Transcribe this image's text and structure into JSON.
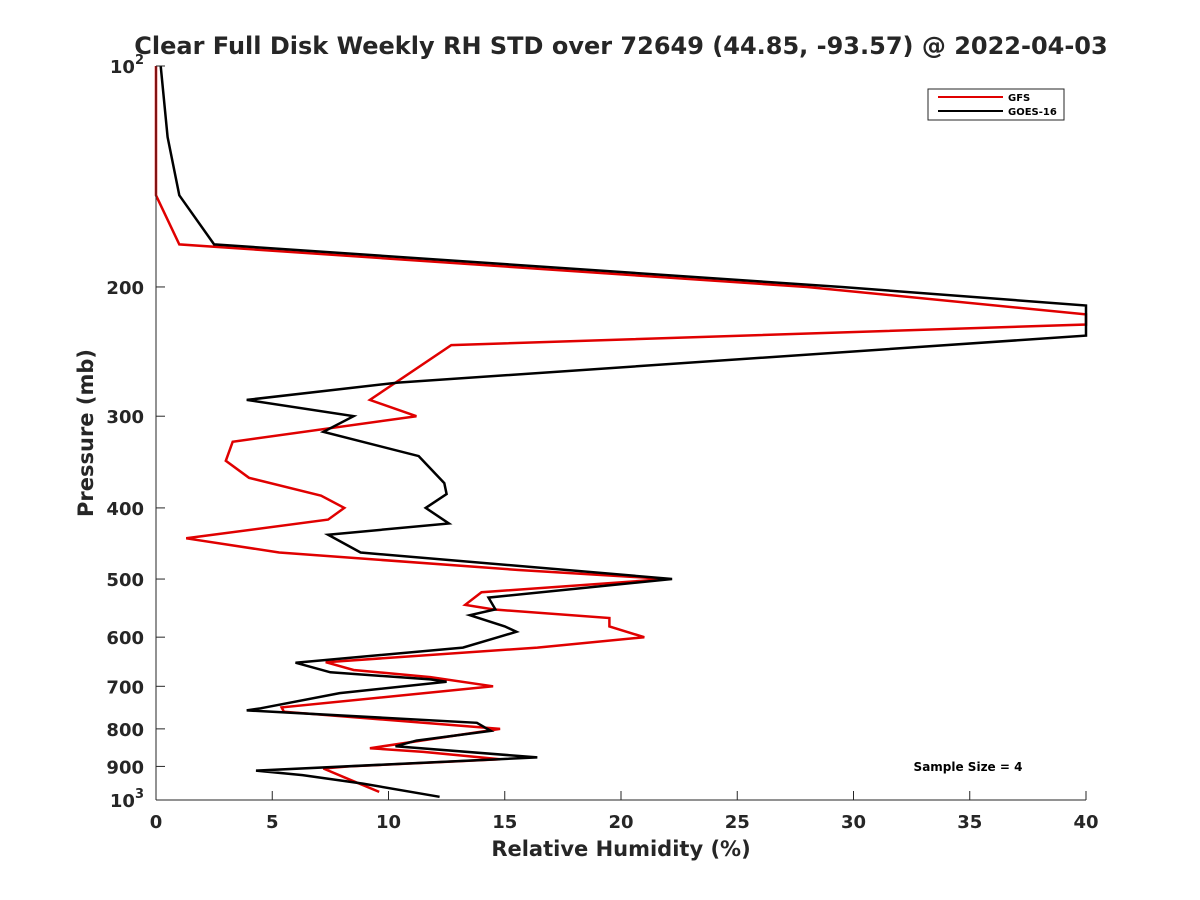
{
  "chart_data": {
    "type": "line",
    "title": "Clear Full Disk Weekly RH STD over 72649 (44.85, -93.57) @ 2022-04-03",
    "xlabel": "Relative Humidity (%)",
    "ylabel": "Pressure (mb)",
    "xlim": [
      0,
      40
    ],
    "ylim": [
      100,
      1000
    ],
    "yscale": "log",
    "y_reversed": true,
    "grid": false,
    "legend_position": "top-right",
    "x_ticks": [
      0,
      5,
      10,
      15,
      20,
      25,
      30,
      35,
      40
    ],
    "x_tick_labels": [
      "0",
      "5",
      "10",
      "15",
      "20",
      "25",
      "30",
      "35",
      "40"
    ],
    "y_ticks": [
      100,
      200,
      300,
      400,
      500,
      600,
      700,
      800,
      900,
      1000
    ],
    "y_tick_labels": [
      {
        "base": "10",
        "exp": "2"
      },
      {
        "base": "200",
        "exp": ""
      },
      {
        "base": "300",
        "exp": ""
      },
      {
        "base": "400",
        "exp": ""
      },
      {
        "base": "500",
        "exp": ""
      },
      {
        "base": "600",
        "exp": ""
      },
      {
        "base": "700",
        "exp": ""
      },
      {
        "base": "800",
        "exp": ""
      },
      {
        "base": "900",
        "exp": ""
      },
      {
        "base": "10",
        "exp": "3"
      }
    ],
    "annotation": "Sample Size = 4",
    "series": [
      {
        "name": "GFS",
        "color": "#e00000",
        "points": [
          [
            0.0,
            100
          ],
          [
            0.0,
            150
          ],
          [
            1.0,
            175
          ],
          [
            28.0,
            200
          ],
          [
            40.0,
            218
          ],
          [
            40.0,
            225
          ],
          [
            12.7,
            240
          ],
          [
            9.2,
            285
          ],
          [
            11.2,
            300
          ],
          [
            3.3,
            325
          ],
          [
            3.0,
            345
          ],
          [
            4.0,
            364
          ],
          [
            7.1,
            385
          ],
          [
            8.1,
            400
          ],
          [
            7.4,
            415
          ],
          [
            1.3,
            440
          ],
          [
            5.3,
            460
          ],
          [
            15.6,
            486
          ],
          [
            22.0,
            500
          ],
          [
            14.0,
            521
          ],
          [
            13.3,
            542
          ],
          [
            14.5,
            550
          ],
          [
            19.5,
            565
          ],
          [
            19.5,
            580
          ],
          [
            21.0,
            600
          ],
          [
            16.4,
            620
          ],
          [
            7.3,
            649
          ],
          [
            8.5,
            665
          ],
          [
            11.8,
            680
          ],
          [
            14.5,
            700
          ],
          [
            5.4,
            748
          ],
          [
            5.5,
            758
          ],
          [
            14.8,
            800
          ],
          [
            9.2,
            850
          ],
          [
            11.5,
            860
          ],
          [
            14.8,
            880
          ],
          [
            8.3,
            900
          ],
          [
            7.2,
            906
          ],
          [
            8.3,
            937
          ],
          [
            9.6,
            975
          ]
        ]
      },
      {
        "name": "GOES-16",
        "color": "#000000",
        "points": [
          [
            0.2,
            100
          ],
          [
            0.5,
            125
          ],
          [
            1.0,
            150
          ],
          [
            2.5,
            175
          ],
          [
            29.5,
            200
          ],
          [
            40.0,
            212
          ],
          [
            40.0,
            233
          ],
          [
            10.4,
            270
          ],
          [
            3.9,
            285
          ],
          [
            8.5,
            300
          ],
          [
            7.2,
            315
          ],
          [
            11.3,
            340
          ],
          [
            12.4,
            370
          ],
          [
            12.5,
            383
          ],
          [
            11.6,
            400
          ],
          [
            12.6,
            420
          ],
          [
            7.4,
            435
          ],
          [
            8.8,
            460
          ],
          [
            22.2,
            500
          ],
          [
            14.3,
            530
          ],
          [
            14.6,
            550
          ],
          [
            13.5,
            560
          ],
          [
            15.0,
            580
          ],
          [
            15.5,
            590
          ],
          [
            13.2,
            620
          ],
          [
            6.0,
            650
          ],
          [
            7.5,
            670
          ],
          [
            11.8,
            685
          ],
          [
            12.5,
            690
          ],
          [
            7.9,
            715
          ],
          [
            4.5,
            750
          ],
          [
            3.9,
            755
          ],
          [
            13.8,
            785
          ],
          [
            14.4,
            805
          ],
          [
            11.2,
            830
          ],
          [
            10.3,
            845
          ],
          [
            16.4,
            875
          ],
          [
            4.3,
            912
          ],
          [
            6.3,
            925
          ],
          [
            8.9,
            950
          ],
          [
            12.2,
            990
          ]
        ]
      }
    ]
  }
}
